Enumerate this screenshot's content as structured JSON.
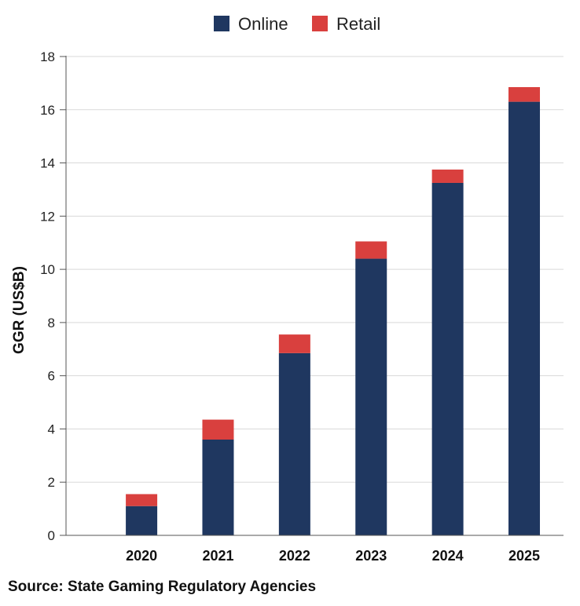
{
  "chart_data": {
    "type": "bar",
    "stacked": true,
    "categories": [
      "2020",
      "2021",
      "2022",
      "2023",
      "2024",
      "2025"
    ],
    "series": [
      {
        "name": "Online",
        "values": [
          1.1,
          3.6,
          6.85,
          10.4,
          13.25,
          16.3
        ]
      },
      {
        "name": "Retail",
        "values": [
          0.45,
          0.75,
          0.7,
          0.65,
          0.5,
          0.55
        ]
      }
    ],
    "ylabel": "GGR (US$B)",
    "xlabel": "",
    "ylim": [
      0,
      18
    ],
    "yticks": [
      0,
      2,
      4,
      6,
      8,
      10,
      12,
      14,
      16,
      18
    ],
    "grid": true,
    "legend_position": "top-center",
    "colors": {
      "Online": "#1f3760",
      "Retail": "#d9403e",
      "grid": "#d9d9d9",
      "axis": "#555555"
    }
  },
  "source": "Source: State Gaming Regulatory Agencies"
}
